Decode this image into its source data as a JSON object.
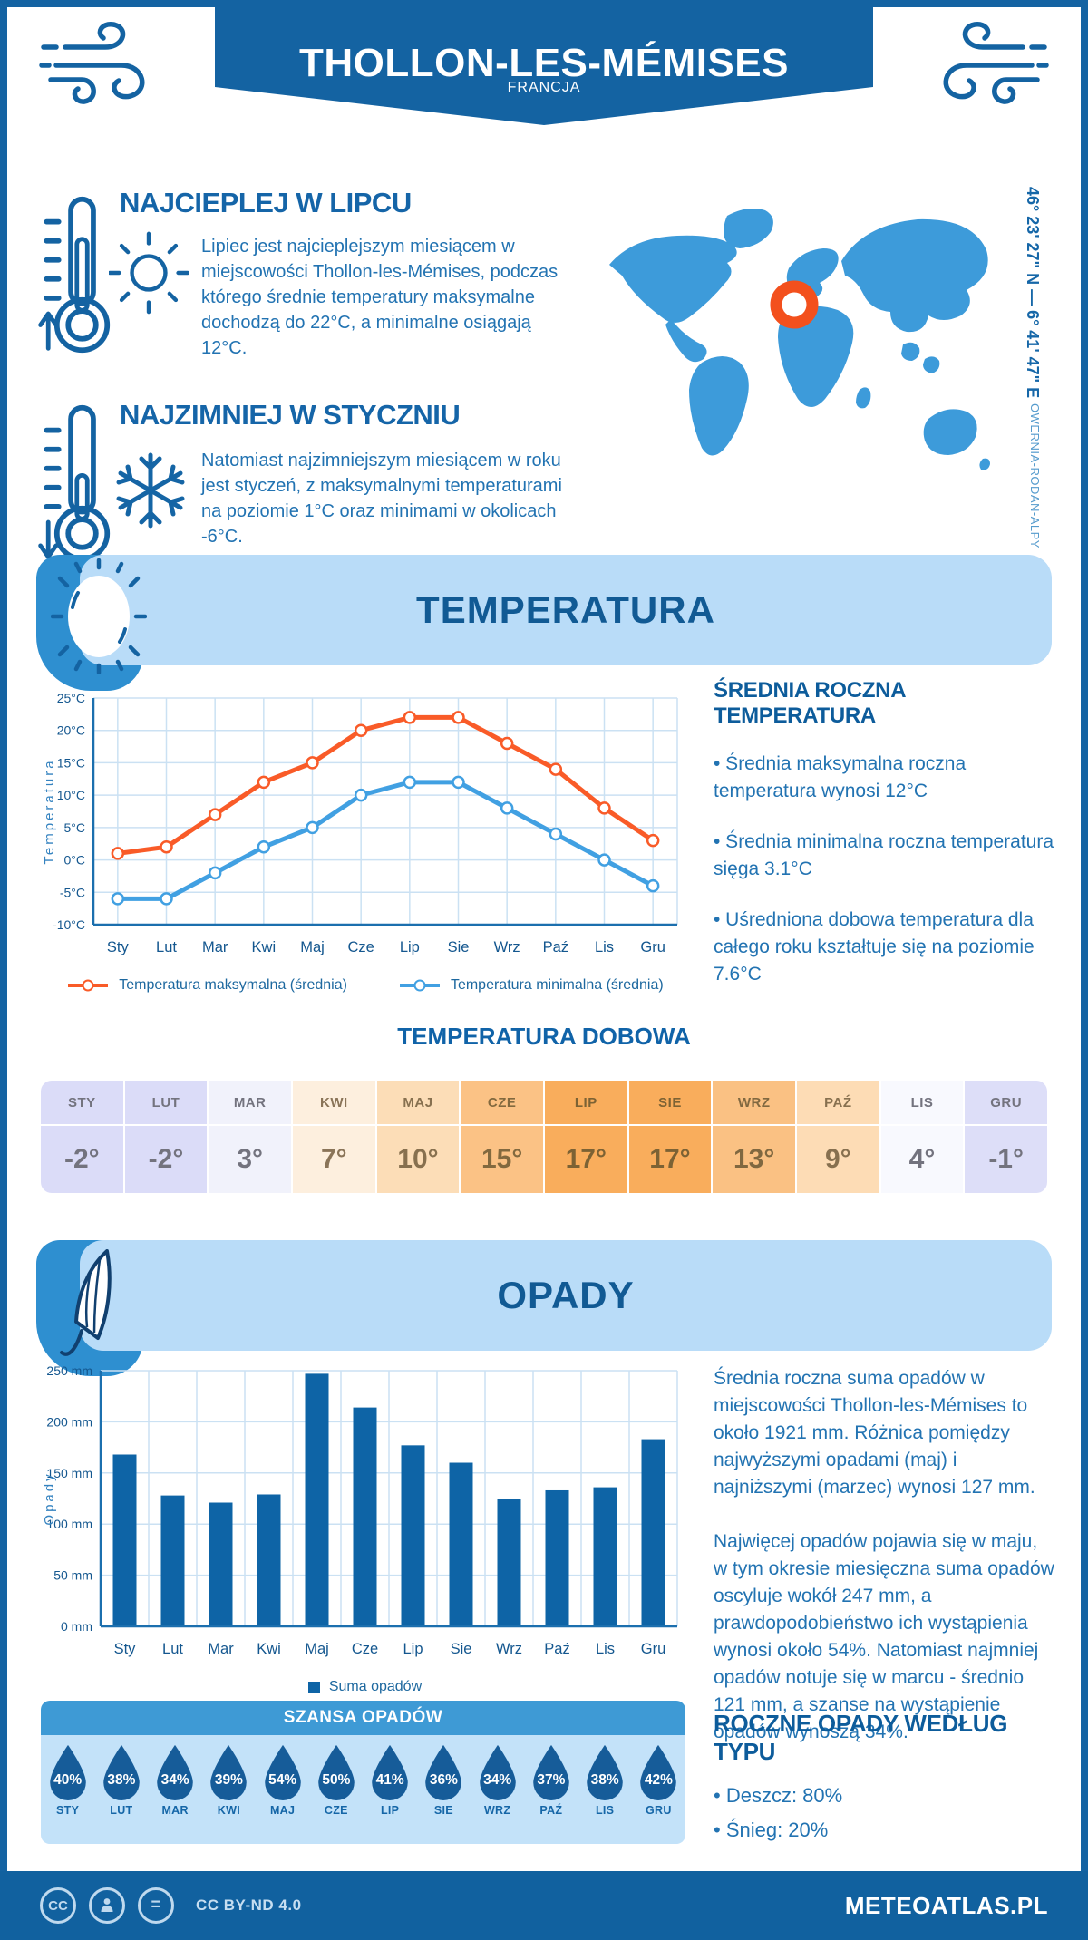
{
  "page": {
    "title": "THOLLON-LES-MÉMISES",
    "subtitle": "FRANCJA",
    "coordinates": "46° 23' 27\" N — 6° 41' 47\" E",
    "region": "OWERNIA-RODAN-ALPY"
  },
  "colors": {
    "dark_blue": "#1463A2",
    "medium_blue": "#2E8FD0",
    "light_band": "#B9DCF8",
    "map_blue": "#3D9BDA",
    "marker_orange": "#F3501D",
    "chance_header": "#3E9AD5",
    "chance_body": "#C3E2F9",
    "drop_blue": "#165C99",
    "footer_blue": "#11619F"
  },
  "warmest": {
    "title": "NAJCIEPLEJ W LIPCU",
    "text": "Lipiec jest najcieplejszym miesiącem w miejscowości Thollon-les-Mémises, podczas którego średnie temperatury maksymalne dochodzą do 22°C, a minimalne osiągają 12°C."
  },
  "coldest": {
    "title": "NAJZIMNIEJ W STYCZNIU",
    "text": "Natomiast najzimniejszym miesiącem w roku jest styczeń, z maksymalnymi temperaturami na poziomie 1°C oraz minimami w okolicach -6°C."
  },
  "temperature_section": {
    "title": "TEMPERATURA",
    "annual": {
      "heading": "ŚREDNIA ROCZNA TEMPERATURA",
      "bullets": [
        "• Średnia maksymalna roczna temperatura wynosi 12°C",
        "• Średnia minimalna roczna temperatura sięga 3.1°C",
        "• Uśredniona dobowa temperatura dla całego roku kształtuje się na poziomie 7.6°C"
      ]
    },
    "daily": {
      "heading": "TEMPERATURA DOBOWA",
      "months": [
        "STY",
        "LUT",
        "MAR",
        "KWI",
        "MAJ",
        "CZE",
        "LIP",
        "SIE",
        "WRZ",
        "PAŹ",
        "LIS",
        "GRU"
      ],
      "values": [
        "-2°",
        "-2°",
        "3°",
        "7°",
        "10°",
        "15°",
        "17°",
        "17°",
        "13°",
        "9°",
        "4°",
        "-1°"
      ],
      "cell_colors": [
        "#DBDCF8",
        "#DBDCF8",
        "#F1F2FB",
        "#FDEFDE",
        "#FCDDB7",
        "#FBC285",
        "#F9AD5C",
        "#F9AD5C",
        "#FAC183",
        "#FDDCB5",
        "#F8F9FE",
        "#DDDEF8"
      ],
      "text_colors": [
        "#73737E",
        "#73737E",
        "#73737E",
        "#8A7458",
        "#87704F",
        "#82693F",
        "#7C6234",
        "#7C6234",
        "#806840",
        "#87704F",
        "#73737E",
        "#73737E"
      ]
    }
  },
  "precipitation_section": {
    "title": "OPADY",
    "paragraphs": [
      "Średnia roczna suma opadów w miejscowości Thollon-les-Mémises to około 1921 mm. Różnica pomiędzy najwyższymi opadami (maj) i najniższymi (marzec) wynosi 127 mm.",
      "Najwięcej opadów pojawia się w maju, w tym okresie miesięczna suma opadów oscyluje wokół 247 mm, a prawdopodobieństwo ich wystąpienia wynosi około 54%. Natomiast najmniej opadów notuje się w marcu - średnio 121 mm, a szanse na wystąpienie opadów wynoszą 34%."
    ],
    "type_heading": "ROCZNE OPADY WEDŁUG TYPU",
    "type_bullets": [
      "• Deszcz: 80%",
      "• Śnieg: 20%"
    ],
    "chance": {
      "heading": "SZANSA OPADÓW",
      "months": [
        "STY",
        "LUT",
        "MAR",
        "KWI",
        "MAJ",
        "CZE",
        "LIP",
        "SIE",
        "WRZ",
        "PAŹ",
        "LIS",
        "GRU"
      ],
      "values": [
        "40%",
        "38%",
        "34%",
        "39%",
        "54%",
        "50%",
        "41%",
        "36%",
        "34%",
        "37%",
        "38%",
        "42%"
      ]
    }
  },
  "chart_data": [
    {
      "type": "line",
      "categories": [
        "Sty",
        "Lut",
        "Mar",
        "Kwi",
        "Maj",
        "Cze",
        "Lip",
        "Sie",
        "Wrz",
        "Paź",
        "Lis",
        "Gru"
      ],
      "series": [
        {
          "name": "Temperatura maksymalna (średnia)",
          "color": "#F95B28",
          "values": [
            1,
            2,
            7,
            12,
            15,
            20,
            22,
            22,
            18,
            14,
            8,
            3
          ]
        },
        {
          "name": "Temperatura minimalna (średnia)",
          "color": "#41A0E2",
          "values": [
            -6,
            -6,
            -2,
            2,
            5,
            10,
            12,
            12,
            8,
            4,
            0,
            -4
          ]
        }
      ],
      "ylabel": "Temperatura",
      "ylim": [
        -10,
        25
      ],
      "ytick_step": 5,
      "ytick_suffix": "°C",
      "grid": true,
      "legend_position": "bottom"
    },
    {
      "type": "bar",
      "categories": [
        "Sty",
        "Lut",
        "Mar",
        "Kwi",
        "Maj",
        "Cze",
        "Lip",
        "Sie",
        "Wrz",
        "Paź",
        "Lis",
        "Gru"
      ],
      "series": [
        {
          "name": "Suma opadów",
          "color": "#0E64A6",
          "values": [
            168,
            128,
            121,
            129,
            247,
            214,
            177,
            160,
            125,
            133,
            136,
            183
          ]
        }
      ],
      "ylabel": "Opady",
      "ylim": [
        0,
        250
      ],
      "ytick_step": 50,
      "ytick_suffix": " mm",
      "grid": true,
      "legend_position": "bottom"
    }
  ],
  "footer": {
    "license": "CC BY-ND 4.0",
    "site": "METEOATLAS.PL"
  }
}
